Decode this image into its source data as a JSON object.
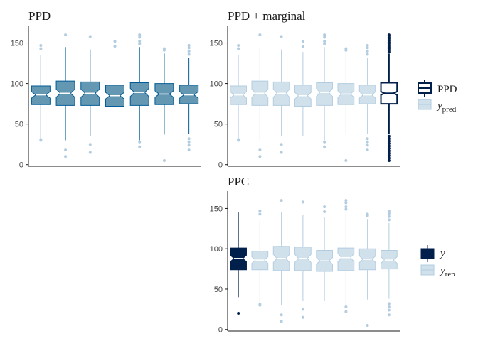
{
  "colors": {
    "ppd_fill": "#6497b1",
    "ppd_line": "#005b96",
    "light_fill": "#d1e1ec",
    "light_line": "#b3cde0",
    "dark_fill": "#011f4b",
    "dark_line": "#011f4b",
    "marginal_fill": "#ffffff",
    "axis": "#1a1a1a"
  },
  "legends": {
    "ppd_marginal": [
      {
        "label": "PPD",
        "style": "outline_dark"
      },
      {
        "label": "y",
        "subscript": "pred",
        "style": "light"
      }
    ],
    "ppc": [
      {
        "label": "y",
        "style": "dark"
      },
      {
        "label": "y",
        "subscript": "rep",
        "style": "light"
      }
    ]
  },
  "chart_data": [
    {
      "type": "boxplot",
      "title": "PPD",
      "notched": true,
      "ylim": [
        -2,
        168
      ],
      "yticks": [
        0,
        50,
        100,
        150
      ],
      "ytick_labels": [
        "0",
        "50",
        "100",
        "150"
      ],
      "series": [
        {
          "style": "ppd",
          "q1": 74,
          "median": 86,
          "q3": 97,
          "notch": 4,
          "whisker_low": 33,
          "whisker_high": 135,
          "outliers": [
            31,
            30,
            143,
            147
          ]
        },
        {
          "style": "ppd",
          "q1": 73,
          "median": 88,
          "q3": 103,
          "notch": 5,
          "whisker_low": 30,
          "whisker_high": 145,
          "outliers": [
            18,
            10,
            160
          ]
        },
        {
          "style": "ppd",
          "q1": 73,
          "median": 88,
          "q3": 102,
          "notch": 5,
          "whisker_low": 35,
          "whisker_high": 142,
          "outliers": [
            25,
            15,
            158
          ]
        },
        {
          "style": "ppd",
          "q1": 72,
          "median": 85,
          "q3": 98,
          "notch": 4,
          "whisker_low": 35,
          "whisker_high": 139,
          "outliers": [
            146,
            152
          ]
        },
        {
          "style": "ppd",
          "q1": 73,
          "median": 89,
          "q3": 101,
          "notch": 5,
          "whisker_low": 30,
          "whisker_high": 145,
          "outliers": [
            28,
            22,
            149,
            152,
            157,
            160
          ]
        },
        {
          "style": "ppd",
          "q1": 74,
          "median": 87,
          "q3": 100,
          "notch": 4,
          "whisker_low": 37,
          "whisker_high": 137,
          "outliers": [
            5,
            141,
            143
          ]
        },
        {
          "style": "ppd",
          "q1": 75,
          "median": 86,
          "q3": 98,
          "notch": 4,
          "whisker_low": 38,
          "whisker_high": 132,
          "outliers": [
            32,
            28,
            24,
            18,
            136,
            140,
            144,
            147
          ]
        }
      ]
    },
    {
      "type": "boxplot",
      "title": "PPD + marginal",
      "notched": true,
      "ylim": [
        -2,
        168
      ],
      "yticks": [
        0,
        50,
        100,
        150
      ],
      "ytick_labels": [
        "0",
        "50",
        "100",
        "150"
      ],
      "series": [
        {
          "style": "light",
          "q1": 74,
          "median": 86,
          "q3": 97,
          "notch": 4,
          "whisker_low": 33,
          "whisker_high": 135,
          "outliers": [
            31,
            30,
            143,
            147
          ]
        },
        {
          "style": "light",
          "q1": 73,
          "median": 88,
          "q3": 103,
          "notch": 5,
          "whisker_low": 30,
          "whisker_high": 145,
          "outliers": [
            18,
            10,
            160
          ]
        },
        {
          "style": "light",
          "q1": 73,
          "median": 88,
          "q3": 102,
          "notch": 5,
          "whisker_low": 35,
          "whisker_high": 142,
          "outliers": [
            25,
            15,
            158
          ]
        },
        {
          "style": "light",
          "q1": 72,
          "median": 85,
          "q3": 98,
          "notch": 4,
          "whisker_low": 35,
          "whisker_high": 139,
          "outliers": [
            146,
            152
          ]
        },
        {
          "style": "light",
          "q1": 73,
          "median": 89,
          "q3": 101,
          "notch": 5,
          "whisker_low": 30,
          "whisker_high": 145,
          "outliers": [
            28,
            22,
            149,
            152,
            157,
            160
          ]
        },
        {
          "style": "light",
          "q1": 74,
          "median": 87,
          "q3": 100,
          "notch": 4,
          "whisker_low": 37,
          "whisker_high": 137,
          "outliers": [
            5,
            141,
            143
          ]
        },
        {
          "style": "light",
          "q1": 75,
          "median": 86,
          "q3": 98,
          "notch": 4,
          "whisker_low": 38,
          "whisker_high": 132,
          "outliers": [
            32,
            28,
            24,
            18,
            136,
            140,
            144,
            147
          ]
        },
        {
          "style": "marginal",
          "q1": 75,
          "median": 88,
          "q3": 101,
          "notch": 2,
          "whisker_low": 38,
          "whisker_high": 137,
          "outliers": [
            5,
            8,
            11,
            14,
            17,
            20,
            23,
            26,
            29,
            32,
            35,
            139,
            141,
            143,
            145,
            147,
            149,
            151,
            153,
            155,
            157,
            159,
            160
          ]
        }
      ]
    },
    {
      "type": "boxplot",
      "title": "PPC",
      "notched": true,
      "ylim": [
        -2,
        168
      ],
      "yticks": [
        0,
        50,
        100,
        150
      ],
      "ytick_labels": [
        "0",
        "50",
        "100",
        "150"
      ],
      "series": [
        {
          "style": "dark",
          "q1": 74,
          "median": 88,
          "q3": 101,
          "notch": 4,
          "whisker_low": 40,
          "whisker_high": 145,
          "outliers": [
            20
          ]
        },
        {
          "style": "light",
          "q1": 74,
          "median": 86,
          "q3": 97,
          "notch": 4,
          "whisker_low": 33,
          "whisker_high": 135,
          "outliers": [
            31,
            30,
            143,
            147
          ]
        },
        {
          "style": "light",
          "q1": 73,
          "median": 88,
          "q3": 103,
          "notch": 5,
          "whisker_low": 30,
          "whisker_high": 145,
          "outliers": [
            18,
            10,
            160
          ]
        },
        {
          "style": "light",
          "q1": 73,
          "median": 88,
          "q3": 102,
          "notch": 5,
          "whisker_low": 35,
          "whisker_high": 142,
          "outliers": [
            25,
            15,
            158
          ]
        },
        {
          "style": "light",
          "q1": 72,
          "median": 85,
          "q3": 98,
          "notch": 4,
          "whisker_low": 35,
          "whisker_high": 139,
          "outliers": [
            146,
            152
          ]
        },
        {
          "style": "light",
          "q1": 73,
          "median": 89,
          "q3": 101,
          "notch": 5,
          "whisker_low": 30,
          "whisker_high": 145,
          "outliers": [
            28,
            22,
            149,
            152,
            157,
            160
          ]
        },
        {
          "style": "light",
          "q1": 74,
          "median": 87,
          "q3": 100,
          "notch": 4,
          "whisker_low": 37,
          "whisker_high": 137,
          "outliers": [
            5,
            141,
            143
          ]
        },
        {
          "style": "light",
          "q1": 75,
          "median": 86,
          "q3": 98,
          "notch": 4,
          "whisker_low": 38,
          "whisker_high": 132,
          "outliers": [
            32,
            28,
            24,
            18,
            136,
            140,
            144,
            147
          ]
        }
      ]
    }
  ]
}
